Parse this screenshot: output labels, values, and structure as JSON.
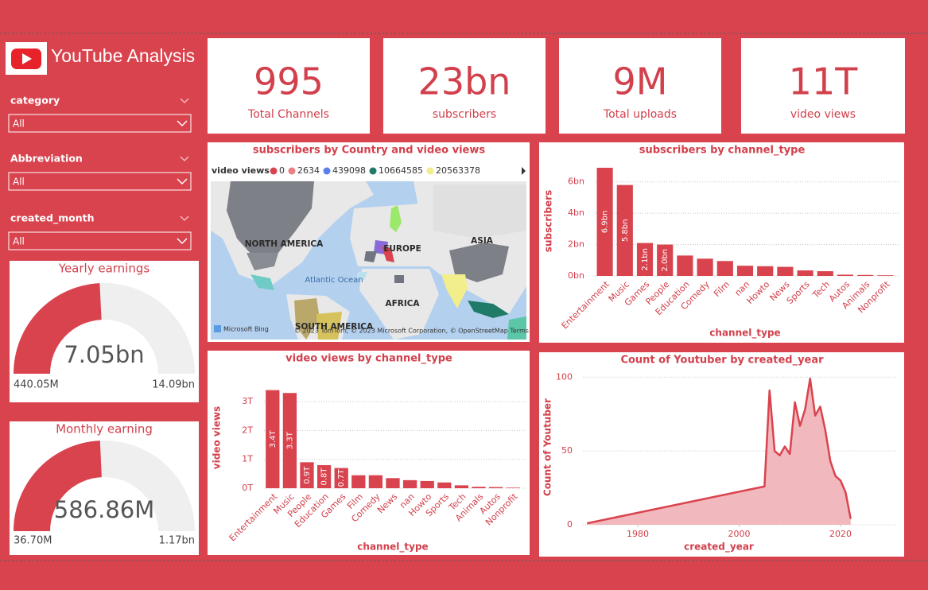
{
  "header": {
    "title": "YouTube Analysis"
  },
  "filters": [
    {
      "label": "category",
      "value": "All"
    },
    {
      "label": "Abbreviation",
      "value": "All"
    },
    {
      "label": "created_month",
      "value": "All"
    }
  ],
  "kpis": [
    {
      "value": "995",
      "label": "Total Channels"
    },
    {
      "value": "23bn",
      "label": "subscribers"
    },
    {
      "value": "9M",
      "label": "Total uploads"
    },
    {
      "value": "11T",
      "label": "video views"
    }
  ],
  "chart_data": [
    {
      "type": "gauge",
      "title": "Yearly earnings",
      "value": 7.05,
      "value_label": "7.05bn",
      "min": {
        "value": 0.44005,
        "label": "440.05M"
      },
      "max": {
        "value": 14.09,
        "label": "14.09bn"
      },
      "color": "#d9434e",
      "track_color": "#efefef"
    },
    {
      "type": "gauge",
      "title": "Monthly earning",
      "value": 586.86,
      "value_label": "586.86M",
      "min": {
        "value": 36.7,
        "label": "36.70M"
      },
      "max": {
        "value": 1170,
        "label": "1.17bn"
      },
      "color": "#d9434e",
      "track_color": "#efefef"
    },
    {
      "type": "map",
      "title": "subscribers by Country and video views",
      "legend_title": "video views",
      "legend": [
        {
          "value": 0,
          "color": "#d9434e"
        },
        {
          "value": 2634,
          "color": "#e87f83"
        },
        {
          "value": 439098,
          "color": "#5a7fe6"
        },
        {
          "value": 10664585,
          "color": "#1f7a68"
        },
        {
          "value": 20563378,
          "color": "#f2ee8c"
        }
      ],
      "labels": [
        "NORTH AMERICA",
        "EUROPE",
        "ASIA",
        "Atlantic Ocean",
        "AFRICA",
        "SOUTH AMERICA"
      ],
      "attribution": "Microsoft Bing",
      "copyright": "© 2023 TomTom, © 2023 Microsoft Corporation, © OpenStreetMap   Terms"
    },
    {
      "type": "bar",
      "title": "subscribers by channel_type",
      "x_label": "channel_type",
      "y_label": "subscribers",
      "categories": [
        "Entertainment",
        "Music",
        "Games",
        "People",
        "Education",
        "Comedy",
        "Film",
        "nan",
        "Howto",
        "News",
        "Sports",
        "Tech",
        "Autos",
        "Animals",
        "Nonprofit"
      ],
      "values": [
        6.9,
        5.8,
        2.1,
        2.0,
        1.3,
        1.1,
        0.95,
        0.65,
        0.62,
        0.58,
        0.35,
        0.3,
        0.08,
        0.06,
        0.04
      ],
      "value_labels": [
        "6.9bn",
        "5.8bn",
        "2.1bn",
        "2.0bn",
        null,
        null,
        null,
        null,
        null,
        null,
        null,
        null,
        null,
        null,
        null
      ],
      "color": "#d9434e",
      "ylim": [
        0,
        7
      ],
      "yticks": [
        {
          "value": 0,
          "label": "0bn"
        },
        {
          "value": 2,
          "label": "2bn"
        },
        {
          "value": 4,
          "label": "4bn"
        },
        {
          "value": 6,
          "label": "6bn"
        }
      ],
      "grid": true
    },
    {
      "type": "bar",
      "title": "video views by channel_type",
      "x_label": "channel_type",
      "y_label": "video views",
      "categories": [
        "Entertainment",
        "Music",
        "People",
        "Education",
        "Games",
        "Film",
        "Comedy",
        "News",
        "nan",
        "Howto",
        "Sports",
        "Tech",
        "Animals",
        "Autos",
        "Nonprofit"
      ],
      "values": [
        3.4,
        3.3,
        0.9,
        0.8,
        0.7,
        0.45,
        0.45,
        0.35,
        0.28,
        0.25,
        0.2,
        0.1,
        0.05,
        0.04,
        0.02
      ],
      "value_labels": [
        "3.4T",
        "3.3T",
        "0.9T",
        "0.8T",
        "0.7T",
        null,
        null,
        null,
        null,
        null,
        null,
        null,
        null,
        null,
        null
      ],
      "color": "#d9434e",
      "ylim": [
        0,
        3.5
      ],
      "yticks": [
        {
          "value": 0,
          "label": "0T"
        },
        {
          "value": 1,
          "label": "1T"
        },
        {
          "value": 2,
          "label": "2T"
        },
        {
          "value": 3,
          "label": "3T"
        }
      ],
      "grid": true
    },
    {
      "type": "area",
      "title": "Count of Youtuber by created_year",
      "x_label": "created_year",
      "y_label": "Count of Youtuber",
      "x": [
        1970,
        2005,
        2006,
        2007,
        2008,
        2009,
        2010,
        2011,
        2012,
        2013,
        2014,
        2015,
        2016,
        2017,
        2018,
        2019,
        2020,
        2021,
        2022
      ],
      "values": [
        1,
        26,
        91,
        50,
        47,
        53,
        48,
        83,
        67,
        78,
        99,
        74,
        80,
        64,
        43,
        33,
        30,
        22,
        4
      ],
      "color": "#d9434e",
      "fill_color": "#f1b9bd",
      "xlim": [
        1970,
        2022
      ],
      "xticks": [
        1980,
        2000,
        2020
      ],
      "ylim": [
        0,
        105
      ],
      "yticks": [
        0,
        50,
        100
      ],
      "grid": true
    }
  ]
}
